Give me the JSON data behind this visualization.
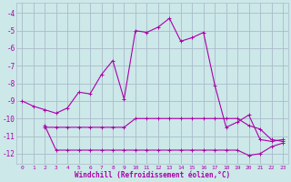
{
  "xlabel": "Windchill (Refroidissement éolien,°C)",
  "background_color": "#cce8e8",
  "grid_color": "#aabbcc",
  "line_color": "#aa00aa",
  "xlim": [
    -0.5,
    23.5
  ],
  "ylim": [
    -12.6,
    -3.4
  ],
  "yticks": [
    -12,
    -11,
    -10,
    -9,
    -8,
    -7,
    -6,
    -5,
    -4
  ],
  "xticks": [
    0,
    1,
    2,
    3,
    4,
    5,
    6,
    7,
    8,
    9,
    10,
    11,
    12,
    13,
    14,
    15,
    16,
    17,
    18,
    19,
    20,
    21,
    22,
    23
  ],
  "series1_x": [
    0,
    1,
    2,
    3,
    4,
    5,
    6,
    7,
    8,
    9,
    10,
    11,
    12,
    13,
    14,
    15,
    16,
    17,
    18,
    19,
    20,
    21,
    22,
    23
  ],
  "series1_y": [
    -9.0,
    -9.3,
    -9.5,
    -9.7,
    -9.4,
    -8.5,
    -8.6,
    -7.5,
    -6.7,
    -8.9,
    -5.0,
    -5.1,
    -4.8,
    -4.3,
    -5.6,
    -5.4,
    -5.1,
    -8.1,
    -10.5,
    -10.2,
    -9.8,
    -11.2,
    -11.3,
    -11.2
  ],
  "series2_x": [
    2,
    3,
    4,
    5,
    6,
    7,
    8,
    9,
    10,
    11,
    12,
    13,
    14,
    15,
    16,
    17,
    18,
    19,
    20,
    21,
    22,
    23
  ],
  "series2_y": [
    -10.4,
    -11.8,
    -11.8,
    -11.8,
    -11.8,
    -11.8,
    -11.8,
    -11.8,
    -11.8,
    -11.8,
    -11.8,
    -11.8,
    -11.8,
    -11.8,
    -11.8,
    -11.8,
    -11.8,
    -11.8,
    -12.1,
    -12.0,
    -11.6,
    -11.4
  ],
  "series3_x": [
    2,
    3,
    4,
    5,
    6,
    7,
    8,
    9,
    10,
    11,
    12,
    13,
    14,
    15,
    16,
    17,
    18,
    19,
    20,
    21,
    22,
    23
  ],
  "series3_y": [
    -10.5,
    -10.5,
    -10.5,
    -10.5,
    -10.5,
    -10.5,
    -10.5,
    -10.5,
    -10.0,
    -10.0,
    -10.0,
    -10.0,
    -10.0,
    -10.0,
    -10.0,
    -10.0,
    -10.0,
    -10.0,
    -10.4,
    -10.6,
    -11.2,
    -11.3
  ]
}
